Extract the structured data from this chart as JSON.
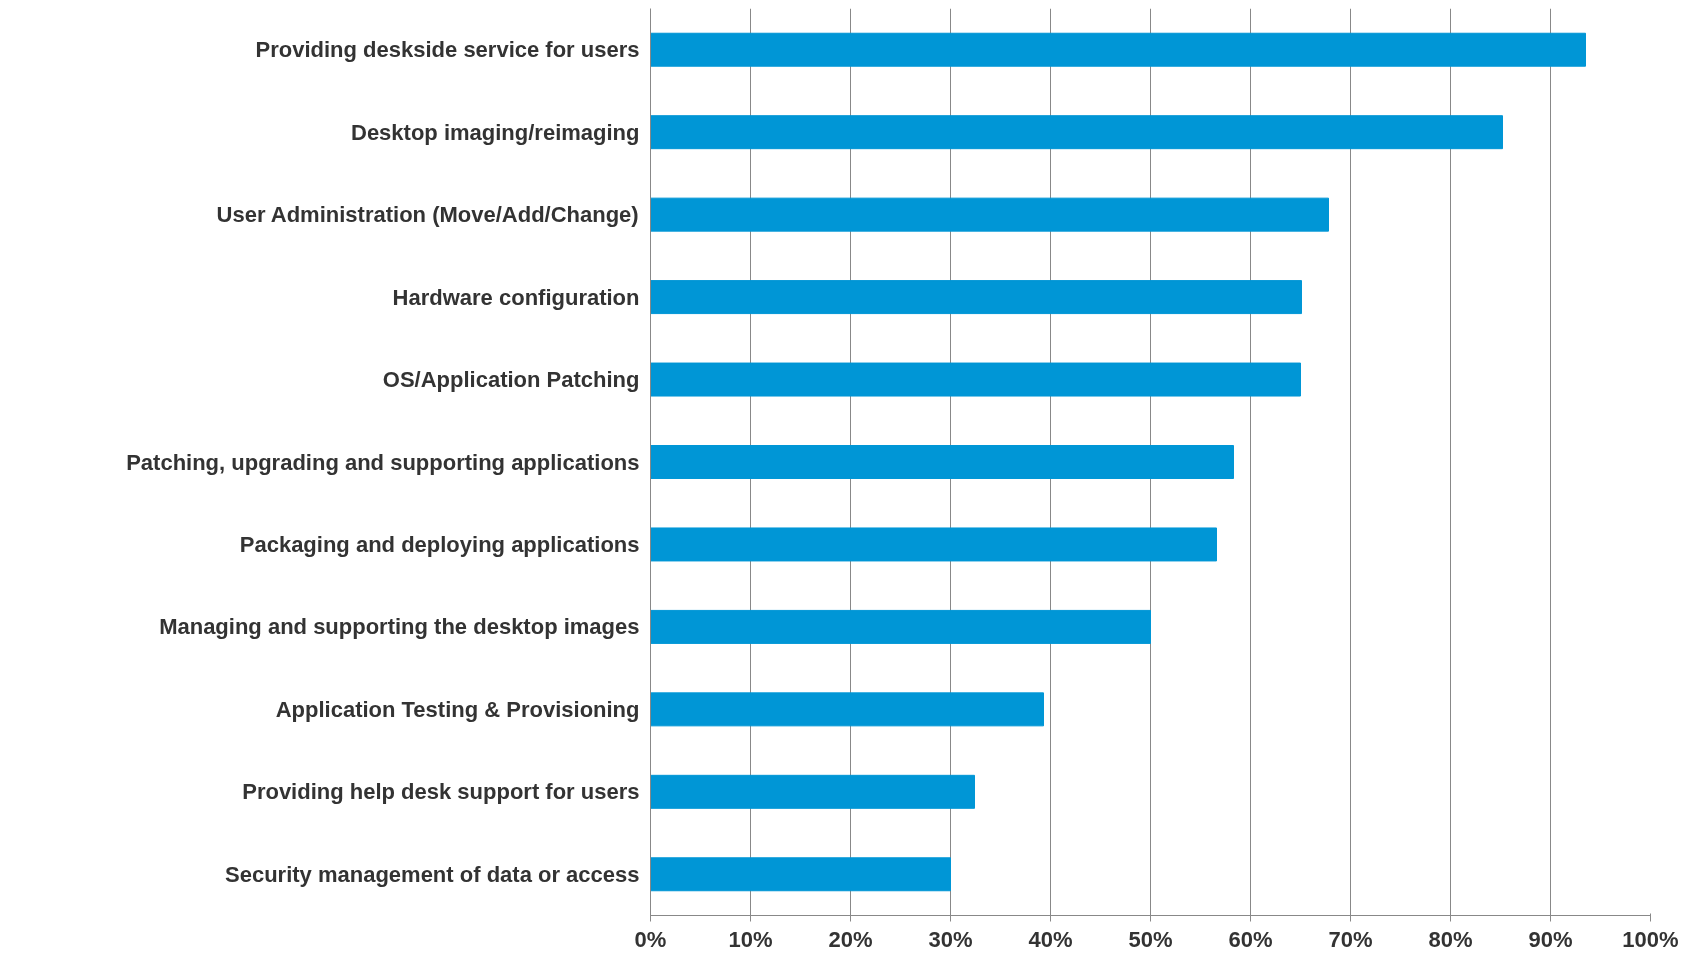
{
  "chart_data": {
    "type": "bar",
    "orientation": "horizontal",
    "categories": [
      "Providing deskside service for users",
      "Desktop imaging/reimaging",
      "User Administration (Move/Add/Change)",
      "Hardware configuration",
      "OS/Application Patching",
      "Patching, upgrading and supporting applications",
      "Packaging and deploying applications",
      "Managing and supporting the desktop images",
      "Application Testing & Provisioning",
      "Providing help desk support for users",
      "Security management of data or access"
    ],
    "values": [
      93.5,
      85.2,
      67.8,
      65.1,
      65.0,
      58.3,
      56.6,
      50,
      39.3,
      32.4,
      30.0
    ],
    "color": "#0096d6",
    "xlim": [
      0,
      100
    ],
    "xticks": [
      {
        "value": 0,
        "label": "0%"
      },
      {
        "value": 10,
        "label": "10%"
      },
      {
        "value": 20,
        "label": "20%"
      },
      {
        "value": 30,
        "label": "30%"
      },
      {
        "value": 40,
        "label": "40%"
      },
      {
        "value": 50,
        "label": "50%"
      },
      {
        "value": 60,
        "label": "60%"
      },
      {
        "value": 70,
        "label": "70%"
      },
      {
        "value": 80,
        "label": "80%"
      },
      {
        "value": 90,
        "label": "90%"
      },
      {
        "value": 100,
        "label": "100%"
      }
    ],
    "grid": "x"
  }
}
